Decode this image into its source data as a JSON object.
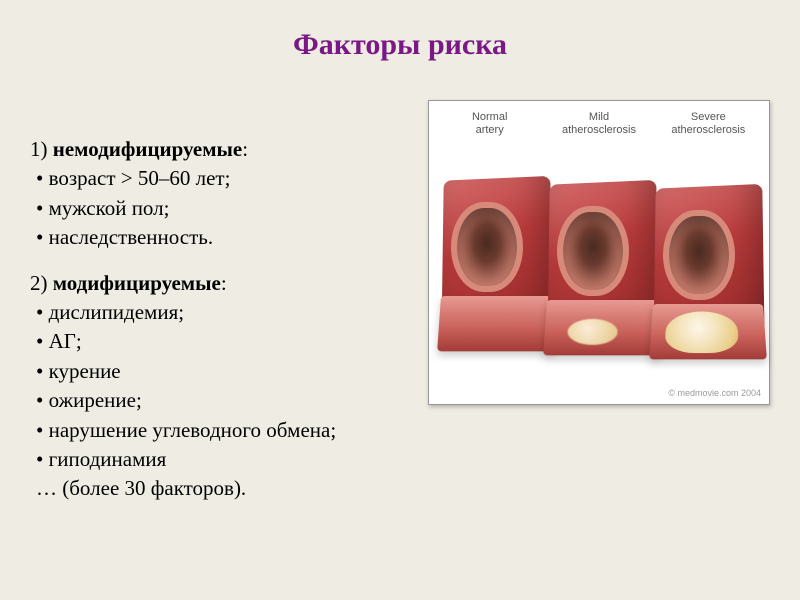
{
  "title": {
    "text": "Факторы риска",
    "color": "#7a1885"
  },
  "group1": {
    "num": "1) ",
    "label": "немодифицируемые",
    "items": [
      "возраст > 50–60 лет;",
      "мужской пол;",
      "наследственность."
    ]
  },
  "group2": {
    "num": "2) ",
    "label": "модифицируемые",
    "items": [
      "дислипидемия;",
      "АГ;",
      "курение",
      "ожирение;",
      "нарушение углеводного обмена;",
      "гиподинамия"
    ],
    "more": "… (более 30 факторов)."
  },
  "figure": {
    "labels": [
      "Normal\nartery",
      "Mild\natherosclerosis",
      "Severe\natherosclerosis"
    ],
    "credit": "© medmovie.com 2004",
    "colors": {
      "outer_light": "#d56b6b",
      "outer_dark": "#8f2626",
      "lumen": "#4a2a20",
      "wall": "#d88a7a",
      "plaque_light": "#fffbe6",
      "plaque_dark": "#e8cf8a",
      "background": "#ffffff",
      "border": "#999999"
    }
  },
  "page": {
    "background": "#efede3"
  }
}
